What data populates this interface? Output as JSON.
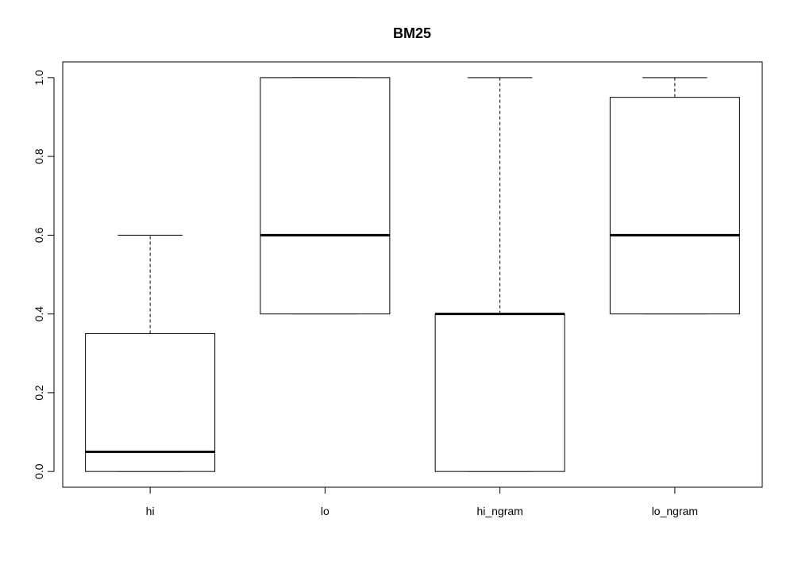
{
  "chart_data": {
    "type": "boxplot",
    "title": "BM25",
    "xlabel": "",
    "ylabel": "",
    "ylim": [
      -0.04,
      1.04
    ],
    "yticks": [
      0.0,
      0.2,
      0.4,
      0.6,
      0.8,
      1.0
    ],
    "ytick_labels": [
      "0.0",
      "0.2",
      "0.4",
      "0.6",
      "0.8",
      "1.0"
    ],
    "categories": [
      "hi",
      "lo",
      "hi_ngram",
      "lo_ngram"
    ],
    "boxes": [
      {
        "name": "hi",
        "whisker_low": 0.0,
        "q1": 0.0,
        "median": 0.05,
        "q3": 0.35,
        "whisker_high": 0.6
      },
      {
        "name": "lo",
        "whisker_low": 0.4,
        "q1": 0.4,
        "median": 0.6,
        "q3": 1.0,
        "whisker_high": 1.0
      },
      {
        "name": "hi_ngram",
        "whisker_low": 0.0,
        "q1": 0.0,
        "median": 0.4,
        "q3": 0.4,
        "whisker_high": 1.0
      },
      {
        "name": "lo_ngram",
        "whisker_low": 0.4,
        "q1": 0.4,
        "median": 0.6,
        "q3": 0.95,
        "whisker_high": 1.0
      }
    ],
    "grid": false,
    "legend": "none"
  }
}
